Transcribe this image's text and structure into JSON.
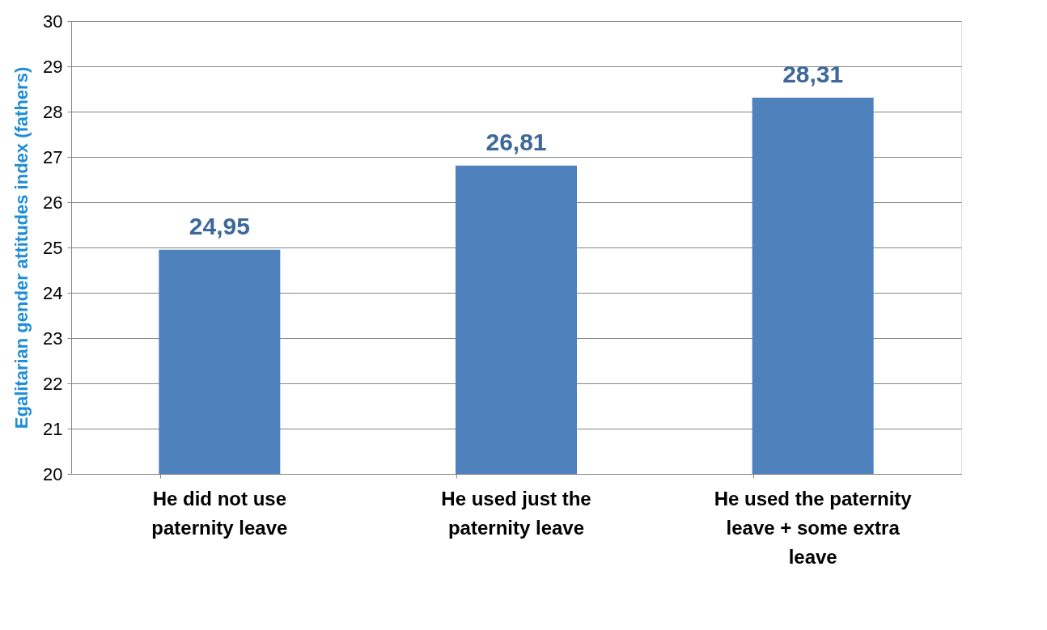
{
  "chart_data": {
    "type": "bar",
    "categories": [
      "He did not use paternity leave",
      "He used just the paternity leave",
      "He used the paternity leave + some extra leave"
    ],
    "values": [
      24.95,
      26.81,
      28.31
    ],
    "value_labels": [
      "24,95",
      "26,81",
      "28,31"
    ],
    "color": "#4f81bd",
    "ylabel": "Egalitarian gender attitudes index (fathers)",
    "ylim": [
      20,
      30
    ],
    "yticks": [
      20,
      21,
      22,
      23,
      24,
      25,
      26,
      27,
      28,
      29,
      30
    ],
    "grid": "y"
  }
}
